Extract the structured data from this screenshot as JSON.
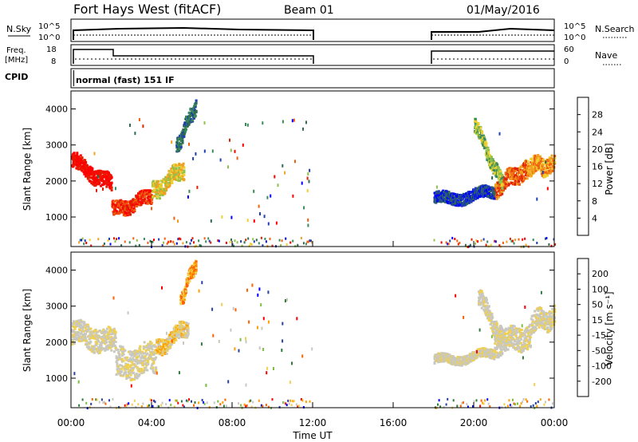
{
  "header": {
    "title": "Fort Hays West (fitACF)",
    "beam": "Beam 01",
    "date": "01/May/2016"
  },
  "panels": {
    "nsky": {
      "left_label": "N.Sky",
      "right_label": "N.Search",
      "left_ticks": [
        "10^5",
        "10^0"
      ],
      "right_ticks": [
        "10^5",
        "10^0"
      ]
    },
    "freq": {
      "left_label_1": "Freq.",
      "left_label_2": "[MHz]",
      "right_label": "Nave",
      "left_ticks": [
        "18",
        "8"
      ],
      "right_ticks": [
        "60",
        "0"
      ]
    },
    "cpid": {
      "label": "CPID",
      "text": "normal (fast) 151 IF"
    }
  },
  "colors": {
    "power": [
      "#0000ff",
      "#1f3fb0",
      "#2e6b50",
      "#3a8a5a",
      "#8fc24a",
      "#f0d030",
      "#f0a020",
      "#f06010",
      "#e02000",
      "#ff0000"
    ],
    "velocity": [
      "#ff0000",
      "#ff6000",
      "#ffa000",
      "#f0d050",
      "#c8c8c0",
      "#c8c8c0",
      "#7ac040",
      "#2e7a3a",
      "#2840a0",
      "#0000ff"
    ],
    "ground": "#c8c8c0"
  },
  "chart_data": [
    {
      "type": "heatmap",
      "name": "power",
      "ylabel": "Slant Range [km]",
      "yticks": [
        "1000",
        "2000",
        "3000",
        "4000"
      ],
      "colorbar_label": "Power [dB]",
      "colorbar_ticks": [
        "4",
        "8",
        "12",
        "16",
        "20",
        "24",
        "28"
      ],
      "ylim": [
        180,
        4500
      ],
      "xlim": [
        0,
        24
      ],
      "bands": [
        {
          "from": 0.0,
          "to": 2.0,
          "center": [
            2600,
            1900
          ],
          "width": 220,
          "level": 9
        },
        {
          "from": 2.0,
          "to": 4.0,
          "center": [
            1200,
            1600
          ],
          "width": 200,
          "level": 8
        },
        {
          "from": 4.0,
          "to": 5.6,
          "center": [
            1700,
            2400
          ],
          "width": 240,
          "level": 5
        },
        {
          "from": 5.2,
          "to": 6.2,
          "center": [
            3000,
            4200
          ],
          "width": 200,
          "level": 2
        },
        {
          "from": 21.0,
          "to": 22.6,
          "center": [
            1800,
            2400
          ],
          "width": 240,
          "level": 7
        },
        {
          "from": 22.6,
          "to": 24.0,
          "center": [
            2400,
            2500
          ],
          "width": 250,
          "level": 6
        },
        {
          "from": 20.0,
          "to": 21.4,
          "center": [
            3600,
            1900
          ],
          "width": 200,
          "level": 4
        },
        {
          "from": 18.0,
          "to": 21.0,
          "center": [
            1500,
            1700
          ],
          "width": 160,
          "level": 1
        }
      ]
    },
    {
      "type": "heatmap",
      "name": "velocity",
      "xlabel": "Time UT",
      "ylabel": "Slant Range [km]",
      "yticks": [
        "1000",
        "2000",
        "3000",
        "4000"
      ],
      "colorbar_label": "Velocity [m s⁻¹]",
      "colorbar_ticks": [
        "200",
        "100",
        "50",
        "15",
        "-15",
        "-50",
        "-100",
        "-200"
      ],
      "xticks": [
        "00:00",
        "04:00",
        "08:00",
        "12:00",
        "16:00",
        "20:00",
        "00:00"
      ],
      "ylim": [
        180,
        4500
      ],
      "xlim": [
        0,
        24
      ],
      "bands": [
        {
          "from": 0.0,
          "to": 2.2,
          "center": [
            2300,
            2000
          ],
          "width": 330,
          "level": 4
        },
        {
          "from": 2.2,
          "to": 4.2,
          "center": [
            1400,
            1600
          ],
          "width": 420,
          "level": 4
        },
        {
          "from": 4.2,
          "to": 5.8,
          "center": [
            1800,
            2500
          ],
          "width": 220,
          "level": 3
        },
        {
          "from": 5.4,
          "to": 6.2,
          "center": [
            3200,
            4300
          ],
          "width": 180,
          "level": 2
        },
        {
          "from": 21.0,
          "to": 22.8,
          "center": [
            2000,
            2200
          ],
          "width": 320,
          "level": 4
        },
        {
          "from": 22.8,
          "to": 24.0,
          "center": [
            2600,
            2700
          ],
          "width": 280,
          "level": 4
        },
        {
          "from": 20.2,
          "to": 21.6,
          "center": [
            3300,
            1900
          ],
          "width": 240,
          "level": 4
        },
        {
          "from": 18.0,
          "to": 21.0,
          "center": [
            1500,
            1700
          ],
          "width": 120,
          "level": 4
        }
      ]
    }
  ]
}
